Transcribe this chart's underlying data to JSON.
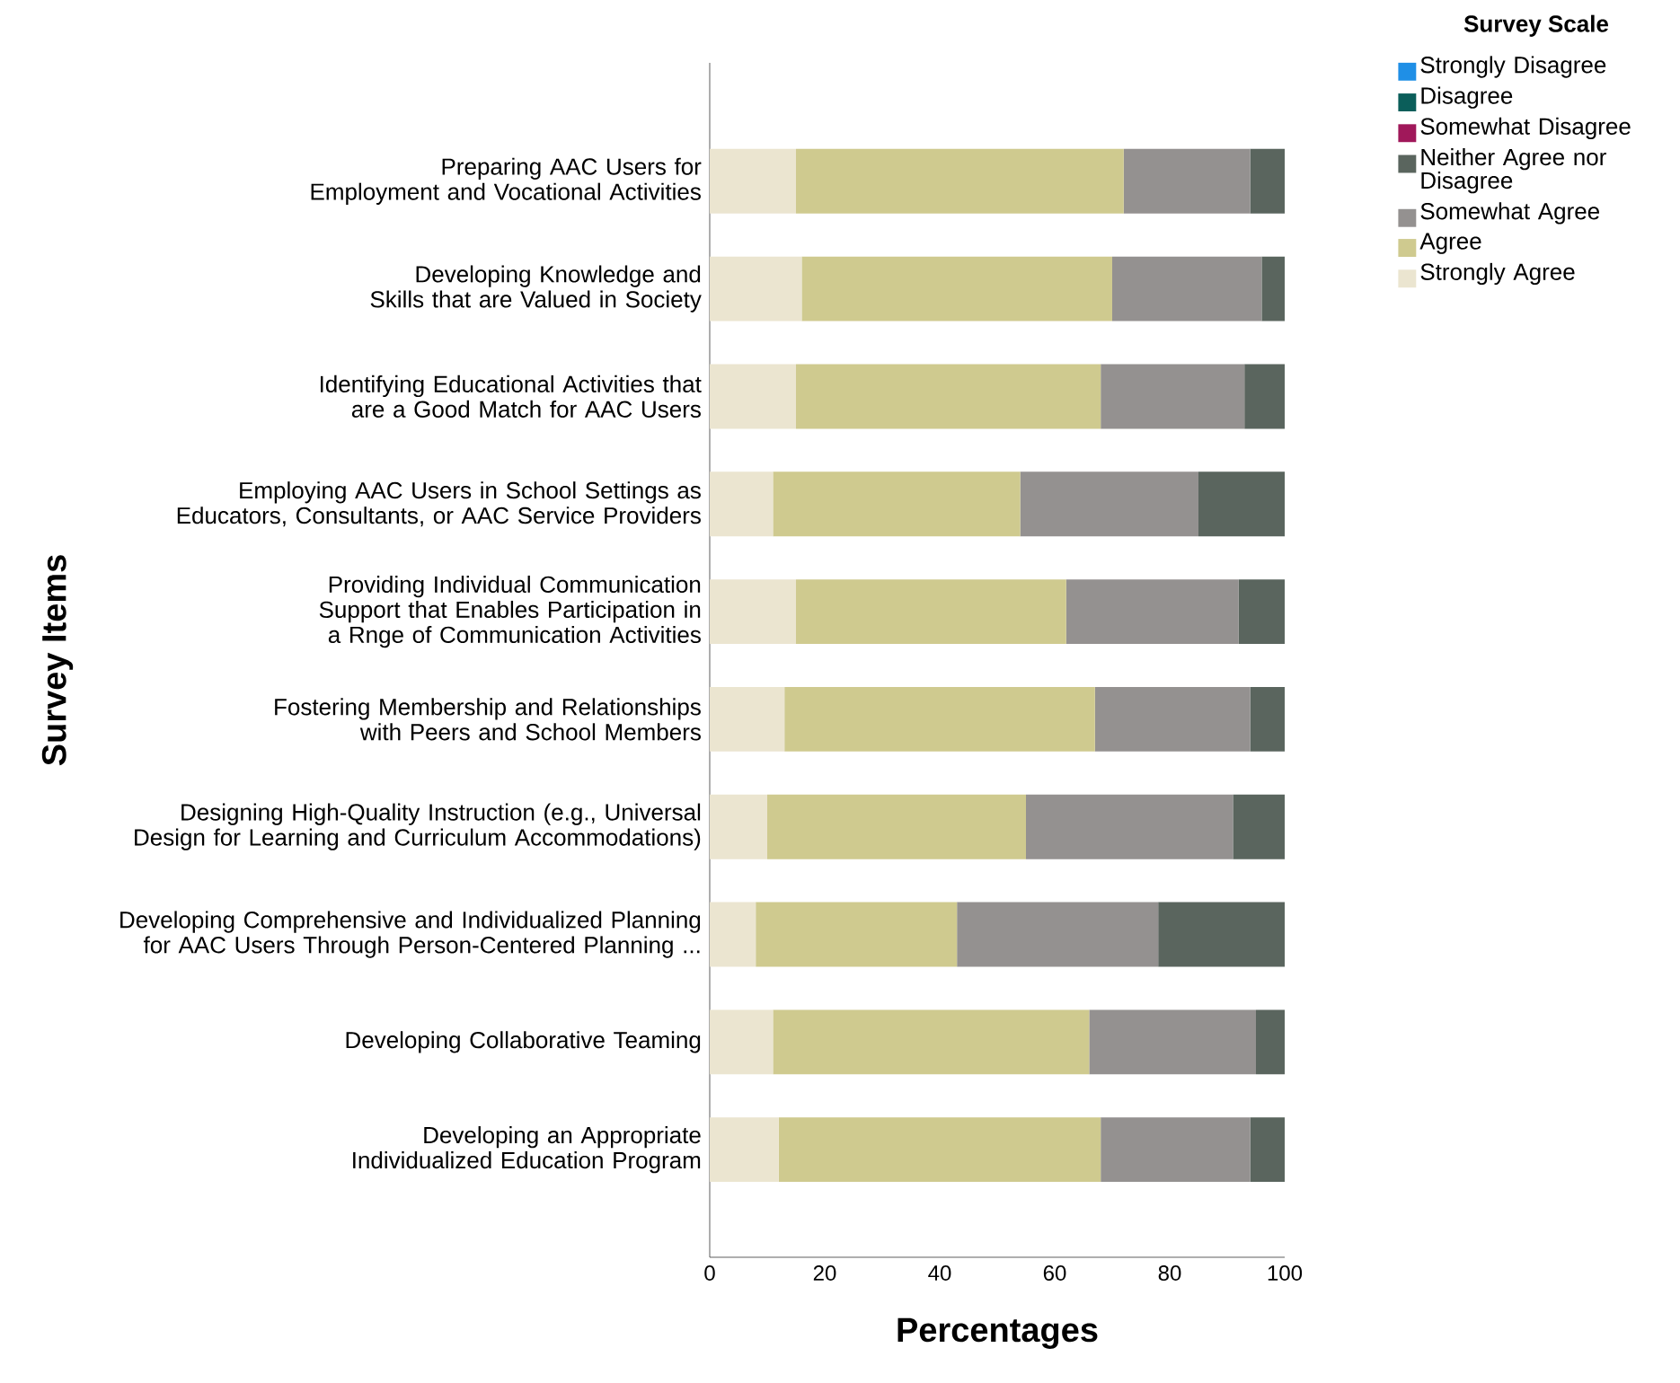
{
  "chart_data": {
    "type": "bar",
    "orientation": "horizontal",
    "stacked": true,
    "xlabel": "Percentages",
    "ylabel": "Survey Items",
    "legend_title": "Survey Scale",
    "legend": "top right",
    "categories": [
      "Preparing AAC Users for Employment and Vocational Activities",
      "Developing Knowledge and Skills that are Valued in Society",
      "Identifying Educational Activities that are a Good Match for AAC Users",
      "Employing AAC Users in School Settings as Educators, Consultants, or AAC Service Providers",
      "Providing Individual Communication Support that Enables Participation in a Rnge of Communication Activities",
      "Fostering Membership and Relationships with Peers and School Members",
      "Designing High-Quality Instruction (e.g., Universal Design for Learning and Curriculum Accommodations)",
      "Developing Comprehensive and Individualized Planning for AAC Users Through Person-Centered Planning ...",
      "Developing Collaborative Teaming",
      "Developing an Appropriate Individualized Education Program"
    ],
    "xlim": [
      0,
      100
    ],
    "xticks": [
      0,
      20,
      40,
      60,
      80,
      100
    ],
    "series": [
      {
        "name": "Strongly Agree",
        "color": "#ebe5d0",
        "values": [
          15,
          16,
          15,
          11,
          15,
          13,
          10,
          8,
          11,
          12
        ]
      },
      {
        "name": "Agree",
        "color": "#cfca8f",
        "values": [
          57,
          54,
          53,
          43,
          47,
          54,
          45,
          35,
          55,
          56
        ]
      },
      {
        "name": "Somewhat Agree",
        "color": "#949190",
        "values": [
          22,
          26,
          25,
          31,
          30,
          27,
          36,
          35,
          29,
          26
        ]
      },
      {
        "name": "Neither Agree nor Disagree",
        "color": "#5a655e",
        "values": [
          6,
          4,
          7,
          15,
          8,
          6,
          9,
          22,
          5,
          6
        ]
      },
      {
        "name": "Somewhat Disagree",
        "color": "#a0185a",
        "values": [
          0,
          0,
          0,
          0,
          0,
          0,
          0,
          0,
          0,
          0
        ]
      },
      {
        "name": "Disagree",
        "color": "#0b5e5a",
        "values": [
          0,
          0,
          0,
          0,
          0,
          0,
          0,
          0,
          0,
          0
        ]
      },
      {
        "name": "Strongly Disagree",
        "color": "#1f8fe6",
        "values": [
          0,
          0,
          0,
          0,
          0,
          0,
          0,
          0,
          0,
          0
        ]
      }
    ]
  }
}
